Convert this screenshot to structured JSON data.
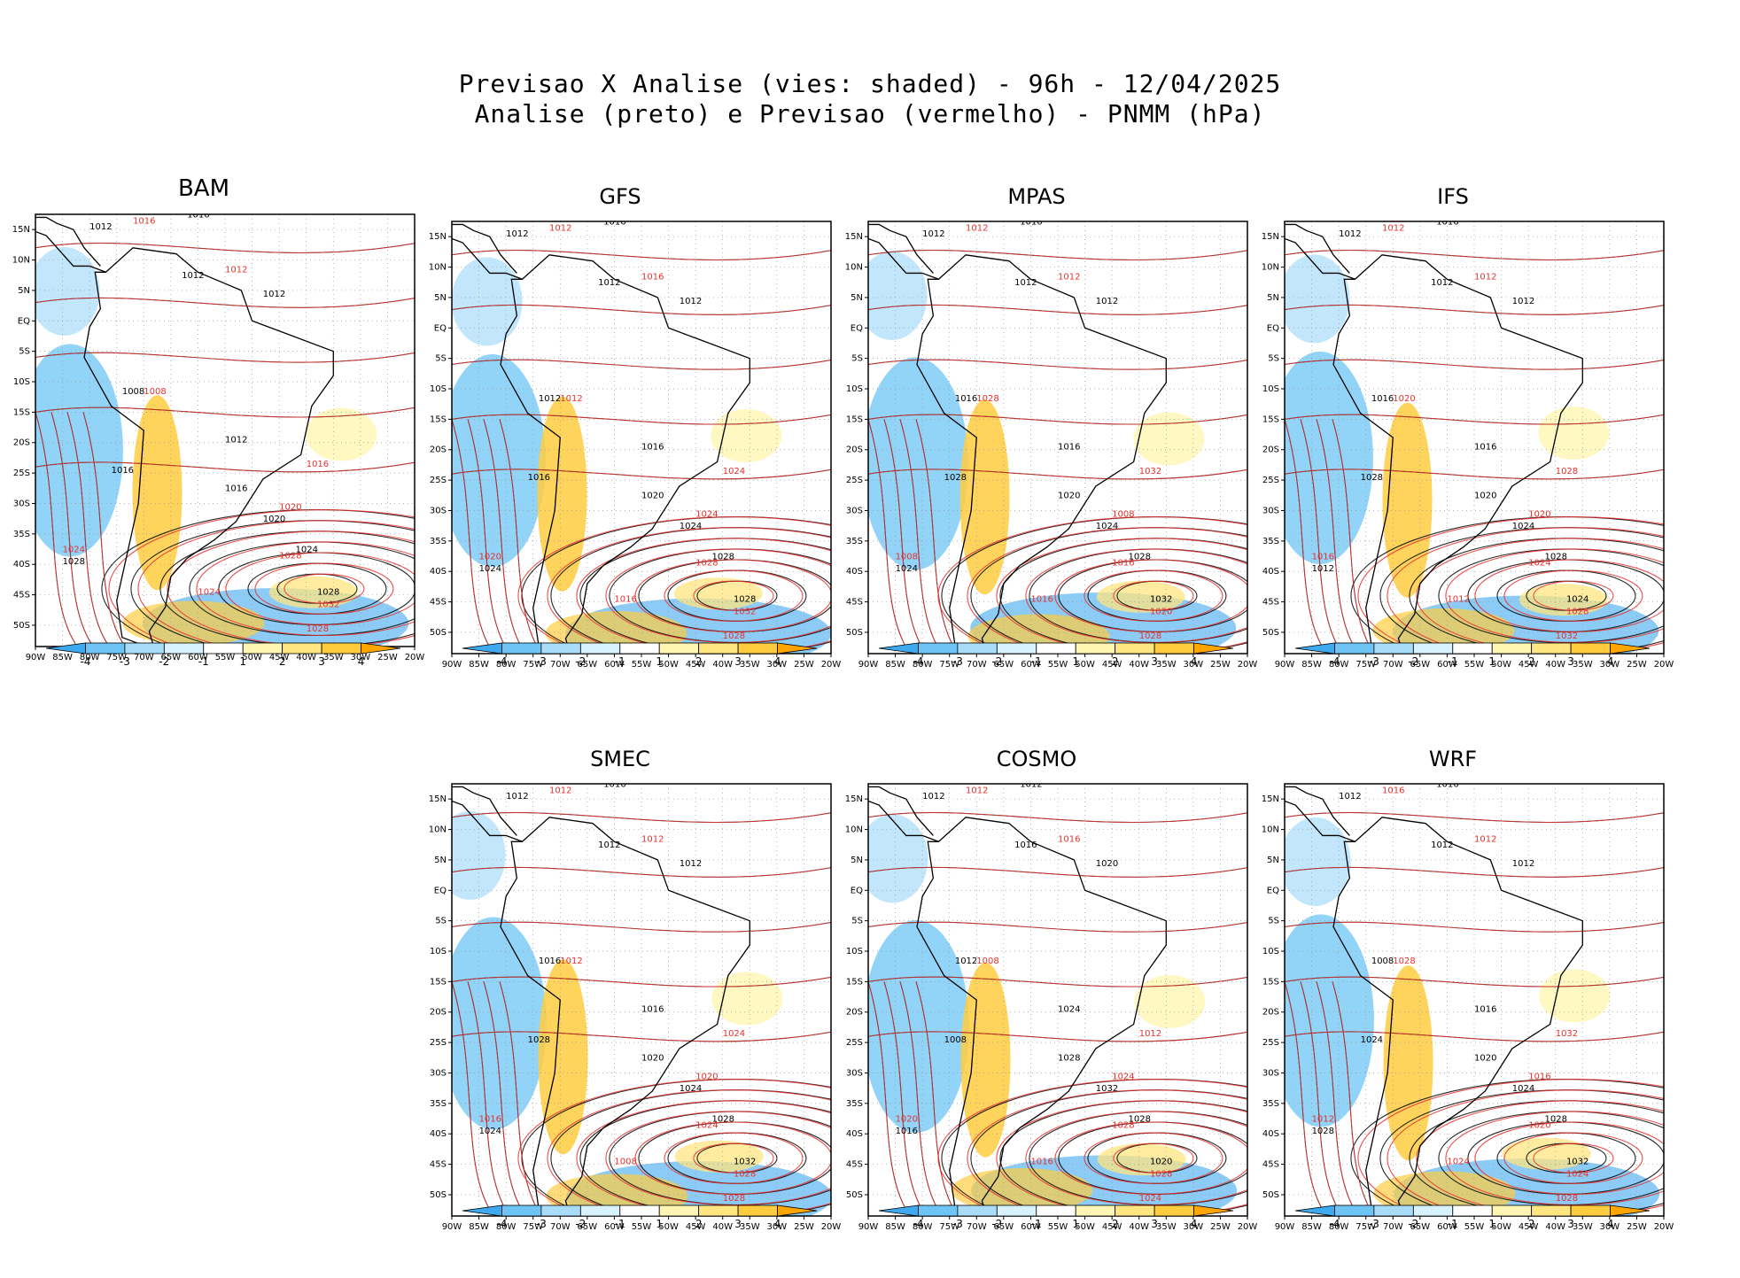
{
  "title": {
    "line1": "Previsao X Analise (vies: shaded) - 96h - 12/04/2025",
    "line2": "Analise (preto) e Previsao (vermelho) - PNMM (hPa)"
  },
  "axes": {
    "lat_labels": [
      "15N",
      "10N",
      "5N",
      "EQ",
      "5S",
      "10S",
      "15S",
      "20S",
      "25S",
      "30S",
      "35S",
      "40S",
      "45S",
      "50S"
    ],
    "lon_labels": [
      "90W",
      "85W",
      "80W",
      "75W",
      "70W",
      "65W",
      "60W",
      "55W",
      "50W",
      "45W",
      "40W",
      "35W",
      "30W",
      "25W",
      "20W"
    ]
  },
  "colorbar": {
    "ticks": [
      "-4",
      "-3",
      "-2",
      "-1",
      "1",
      "2",
      "3",
      "4"
    ],
    "colors": [
      "#3fa9ef",
      "#6ec4f5",
      "#a8dcf9",
      "#d9f2ff",
      "#ffffff",
      "#fff6b4",
      "#ffe680",
      "#ffcc40",
      "#ffa500"
    ]
  },
  "contour_colors": {
    "analysis": "#000000",
    "forecast": "#e8312d"
  },
  "panels": [
    {
      "id": "bam",
      "title": "BAM",
      "analysis_labels": [
        "1012",
        "1016",
        "1012",
        "1012",
        "1012",
        "1016",
        "1020",
        "1024",
        "1028",
        "1028",
        "1008",
        "1016"
      ],
      "forecast_labels": [
        "1016",
        "1012",
        "1024",
        "1020",
        "1028",
        "1032",
        "1028",
        "1016",
        "1008",
        "1024"
      ]
    },
    {
      "id": "gfs",
      "title": "GFS",
      "analysis_labels": [
        "1012",
        "1016",
        "1012",
        "1012",
        "1016",
        "1020",
        "1024",
        "1028",
        "1028",
        "1024",
        "1012",
        "1016"
      ],
      "forecast_labels": [
        "1012",
        "1016",
        "1020",
        "1024",
        "1028",
        "1032",
        "1028",
        "1024",
        "1012",
        "1016"
      ]
    },
    {
      "id": "mpas",
      "title": "MPAS",
      "analysis_labels": [
        "1012",
        "1016",
        "1012",
        "1012",
        "1016",
        "1020",
        "1024",
        "1028",
        "1032",
        "1024",
        "1016",
        "1028"
      ],
      "forecast_labels": [
        "1012",
        "1012",
        "1008",
        "1008",
        "1016",
        "1020",
        "1028",
        "1032",
        "1028",
        "1016"
      ]
    },
    {
      "id": "ifs",
      "title": "IFS",
      "analysis_labels": [
        "1012",
        "1016",
        "1012",
        "1012",
        "1016",
        "1020",
        "1024",
        "1028",
        "1024",
        "1012",
        "1016",
        "1028"
      ],
      "forecast_labels": [
        "1012",
        "1012",
        "1016",
        "1020",
        "1024",
        "1028",
        "1032",
        "1028",
        "1020",
        "1012"
      ]
    },
    {
      "id": "smec",
      "title": "SMEC",
      "analysis_labels": [
        "1012",
        "1016",
        "1012",
        "1012",
        "1016",
        "1020",
        "1024",
        "1028",
        "1032",
        "1024",
        "1016",
        "1028"
      ],
      "forecast_labels": [
        "1012",
        "1012",
        "1016",
        "1020",
        "1024",
        "1028",
        "1028",
        "1024",
        "1012",
        "1008"
      ]
    },
    {
      "id": "cosmo",
      "title": "COSMO",
      "analysis_labels": [
        "1012",
        "1012",
        "1016",
        "1020",
        "1024",
        "1028",
        "1032",
        "1028",
        "1020",
        "1016",
        "1012",
        "1008"
      ],
      "forecast_labels": [
        "1012",
        "1016",
        "1020",
        "1024",
        "1028",
        "1028",
        "1024",
        "1012",
        "1008",
        "1016"
      ]
    },
    {
      "id": "wrf",
      "title": "WRF",
      "analysis_labels": [
        "1012",
        "1016",
        "1012",
        "1012",
        "1016",
        "1020",
        "1024",
        "1028",
        "1032",
        "1028",
        "1008",
        "1024"
      ],
      "forecast_labels": [
        "1016",
        "1012",
        "1012",
        "1016",
        "1020",
        "1024",
        "1028",
        "1032",
        "1028",
        "1024"
      ]
    }
  ]
}
